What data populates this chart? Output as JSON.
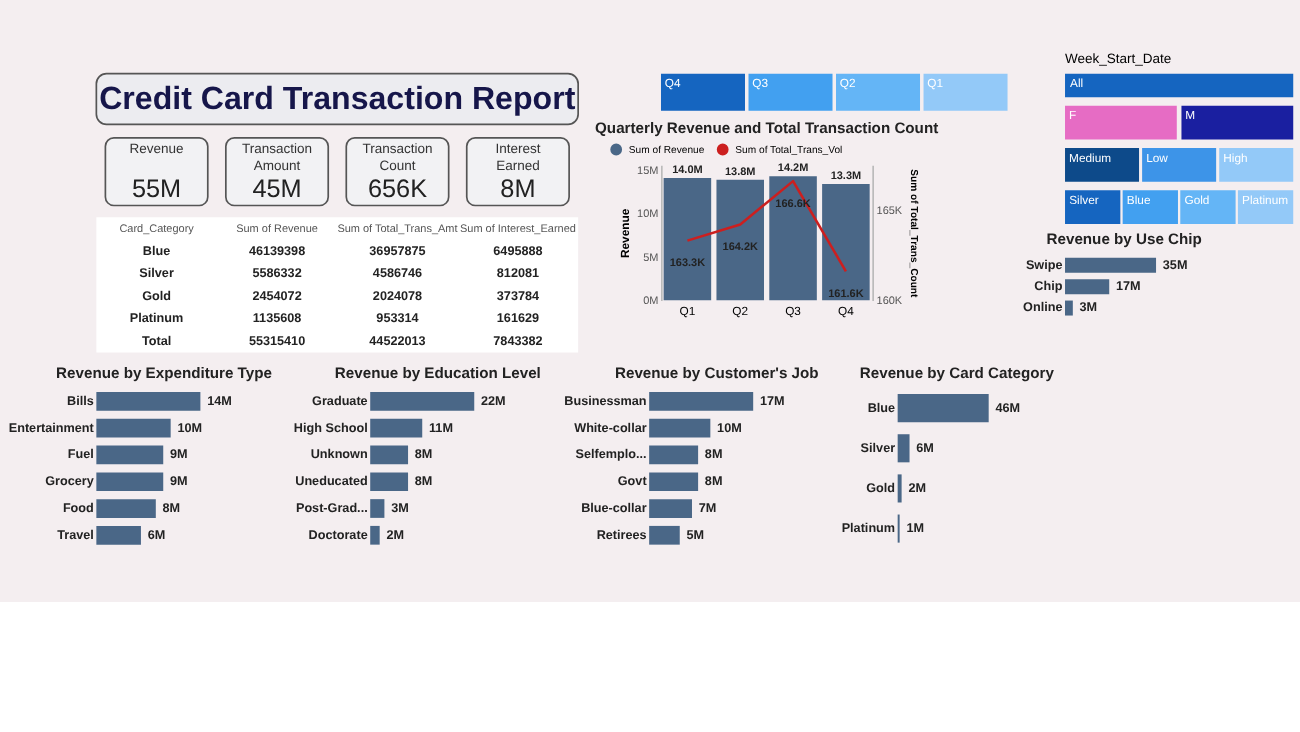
{
  "chart_data": [
    {
      "type": "other",
      "title": "Credit Card Transaction Report"
    },
    {
      "type": "other",
      "categories": [
        "Revenue",
        "Transaction Amount",
        "Transaction Count",
        "Interest Earned"
      ],
      "value_labels": [
        "55M",
        "45M",
        "656K",
        "8M"
      ]
    },
    {
      "type": "other",
      "xlabel": "Card_Category",
      "categories": [
        "Blue",
        "Silver",
        "Gold",
        "Platinum",
        "Total"
      ],
      "data_labels": true,
      "series": [
        {
          "name": "Sum of Revenue",
          "values": [
            46139398,
            5586332,
            2454072,
            1135608,
            55315410
          ]
        },
        {
          "name": "Sum of Total_Trans_Amt",
          "values": [
            36957875,
            4586746,
            2024078,
            953314,
            44522013
          ]
        },
        {
          "name": "Sum of Interest_Earned",
          "values": [
            6495888,
            812081,
            373784,
            161629,
            7843382
          ]
        }
      ]
    },
    {
      "type": "other",
      "categories": [
        "Q4",
        "Q3",
        "Q2",
        "Q1"
      ],
      "colors": [
        "#1565c0",
        "#42a0f0",
        "#64b5f6",
        "#93c9f8"
      ]
    },
    {
      "type": "bar",
      "title": "Quarterly Revenue and Total Transaction Count",
      "categories": [
        "Q1",
        "Q2",
        "Q3",
        "Q4"
      ],
      "ylabel": "Revenue",
      "y2label": "Sum of Total_Trans_Count",
      "ylim": [
        0,
        15.5
      ],
      "yticks": [
        {
          "value": 0,
          "label": "0M"
        },
        {
          "value": 5,
          "label": "5M"
        },
        {
          "value": 10,
          "label": "10M"
        },
        {
          "value": 15,
          "label": "15M"
        }
      ],
      "y2lim": [
        160,
        167.5
      ],
      "y2ticks": [
        {
          "value": 160,
          "label": "160K"
        },
        {
          "value": 165,
          "label": "165K"
        }
      ],
      "legend": "top left",
      "grid": false,
      "series": [
        {
          "name": "Sum of Revenue",
          "color": "#4a6787",
          "values": [
            14.0,
            13.8,
            14.2,
            13.3
          ],
          "value_labels": [
            "14.0M",
            "13.8M",
            "14.2M",
            "13.3M"
          ]
        },
        {
          "name": "Sum of Total_Trans_Vol",
          "type": "line",
          "axis": "y2",
          "color": "#cc1f1f",
          "values": [
            163.3,
            164.2,
            166.6,
            161.6
          ],
          "value_labels": [
            "163.3K",
            "164.2K",
            "166.6K",
            "161.6K"
          ]
        }
      ]
    },
    {
      "type": "other",
      "title": "Week_Start_Date",
      "categories": [
        "All"
      ],
      "colors": [
        "#1565c0"
      ]
    },
    {
      "type": "other",
      "categories": [
        "F",
        "M"
      ],
      "colors": [
        "#e66cc4",
        "#1a1fa0"
      ]
    },
    {
      "type": "other",
      "categories": [
        "Medium",
        "Low",
        "High"
      ],
      "colors": [
        "#0d4a8a",
        "#3d94e8",
        "#93c9f8"
      ]
    },
    {
      "type": "other",
      "categories": [
        "Silver",
        "Blue",
        "Gold",
        "Platinum"
      ],
      "colors": [
        "#1565c0",
        "#42a0f0",
        "#64b5f6",
        "#93c9f8"
      ]
    },
    {
      "type": "bar",
      "orientation": "horizontal",
      "title": "Revenue by Use Chip",
      "categories": [
        "Swipe",
        "Chip",
        "Online"
      ],
      "values": [
        35,
        17,
        3
      ],
      "value_labels": [
        "35M",
        "17M",
        "3M"
      ],
      "color": "#4a6787",
      "tick_labels": "y"
    },
    {
      "type": "bar",
      "orientation": "horizontal",
      "title": "Revenue by Expenditure Type",
      "categories": [
        "Bills",
        "Entertainment",
        "Fuel",
        "Grocery",
        "Food",
        "Travel"
      ],
      "values": [
        14,
        10,
        9,
        9,
        8,
        6
      ],
      "value_labels": [
        "14M",
        "10M",
        "9M",
        "9M",
        "8M",
        "6M"
      ],
      "color": "#4a6787",
      "tick_labels": "y"
    },
    {
      "type": "bar",
      "orientation": "horizontal",
      "title": "Revenue by Education Level",
      "categories": [
        "Graduate",
        "High School",
        "Unknown",
        "Uneducated",
        "Post-Grad...",
        "Doctorate"
      ],
      "values": [
        22,
        11,
        8,
        8,
        3,
        2
      ],
      "value_labels": [
        "22M",
        "11M",
        "8M",
        "8M",
        "3M",
        "2M"
      ],
      "color": "#4a6787",
      "tick_labels": "y"
    },
    {
      "type": "bar",
      "orientation": "horizontal",
      "title": "Revenue by Customer's Job",
      "categories": [
        "Businessman",
        "White-collar",
        "Selfemplo...",
        "Govt",
        "Blue-collar",
        "Retirees"
      ],
      "values": [
        17,
        10,
        8,
        8,
        7,
        5
      ],
      "value_labels": [
        "17M",
        "10M",
        "8M",
        "8M",
        "7M",
        "5M"
      ],
      "color": "#4a6787",
      "tick_labels": "y"
    },
    {
      "type": "bar",
      "orientation": "horizontal",
      "title": "Revenue by Card Category",
      "categories": [
        "Blue",
        "Silver",
        "Gold",
        "Platinum"
      ],
      "values": [
        46,
        6,
        2,
        1
      ],
      "value_labels": [
        "46M",
        "6M",
        "2M",
        "1M"
      ],
      "color": "#4a6787",
      "tick_labels": "y"
    }
  ]
}
